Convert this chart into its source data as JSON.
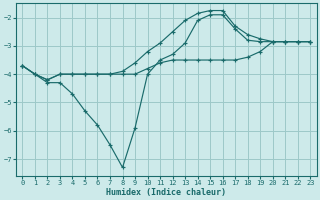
{
  "xlabel": "Humidex (Indice chaleur)",
  "bg_color": "#cdeaea",
  "grid_color": "#9dc8c8",
  "line_color": "#1a6b6b",
  "xlim": [
    -0.5,
    23.5
  ],
  "ylim": [
    -7.6,
    -1.5
  ],
  "yticks": [
    -7,
    -6,
    -5,
    -4,
    -3,
    -2
  ],
  "xticks": [
    0,
    1,
    2,
    3,
    4,
    5,
    6,
    7,
    8,
    9,
    10,
    11,
    12,
    13,
    14,
    15,
    16,
    17,
    18,
    19,
    20,
    21,
    22,
    23
  ],
  "curve_flat_x": [
    0,
    1,
    2,
    3,
    4,
    5,
    6,
    7,
    8,
    9,
    10,
    11,
    12,
    13,
    14,
    15,
    16,
    17,
    18,
    19,
    20,
    21,
    22,
    23
  ],
  "curve_flat_y": [
    -3.7,
    -4.0,
    -4.2,
    -4.0,
    -4.0,
    -4.0,
    -4.0,
    -4.0,
    -4.0,
    -4.0,
    -3.8,
    -3.6,
    -3.5,
    -3.5,
    -3.5,
    -3.5,
    -3.5,
    -3.5,
    -3.4,
    -3.2,
    -2.85,
    -2.85,
    -2.85,
    -2.85
  ],
  "curve_dip_x": [
    0,
    1,
    2,
    3,
    4,
    5,
    6,
    7,
    8,
    9,
    10,
    11,
    12,
    13,
    14,
    15,
    16,
    17,
    18,
    19,
    20,
    21,
    22,
    23
  ],
  "curve_dip_y": [
    -3.7,
    -4.0,
    -4.3,
    -4.3,
    -4.7,
    -5.3,
    -5.8,
    -6.5,
    -7.3,
    -5.9,
    -4.0,
    -3.5,
    -3.3,
    -2.9,
    -2.1,
    -1.9,
    -1.9,
    -2.4,
    -2.8,
    -2.85,
    -2.85,
    -2.85,
    -2.85,
    -2.85
  ],
  "curve_top_x": [
    0,
    1,
    2,
    3,
    4,
    5,
    6,
    7,
    8,
    9,
    10,
    11,
    12,
    13,
    14,
    15,
    16,
    17,
    18,
    19,
    20,
    21,
    22,
    23
  ],
  "curve_top_y": [
    -3.7,
    -4.0,
    -4.2,
    -4.0,
    -4.0,
    -4.0,
    -4.0,
    -4.0,
    -3.9,
    -3.6,
    -3.2,
    -2.9,
    -2.5,
    -2.1,
    -1.85,
    -1.75,
    -1.75,
    -2.3,
    -2.6,
    -2.75,
    -2.85,
    -2.85,
    -2.85,
    -2.85
  ]
}
